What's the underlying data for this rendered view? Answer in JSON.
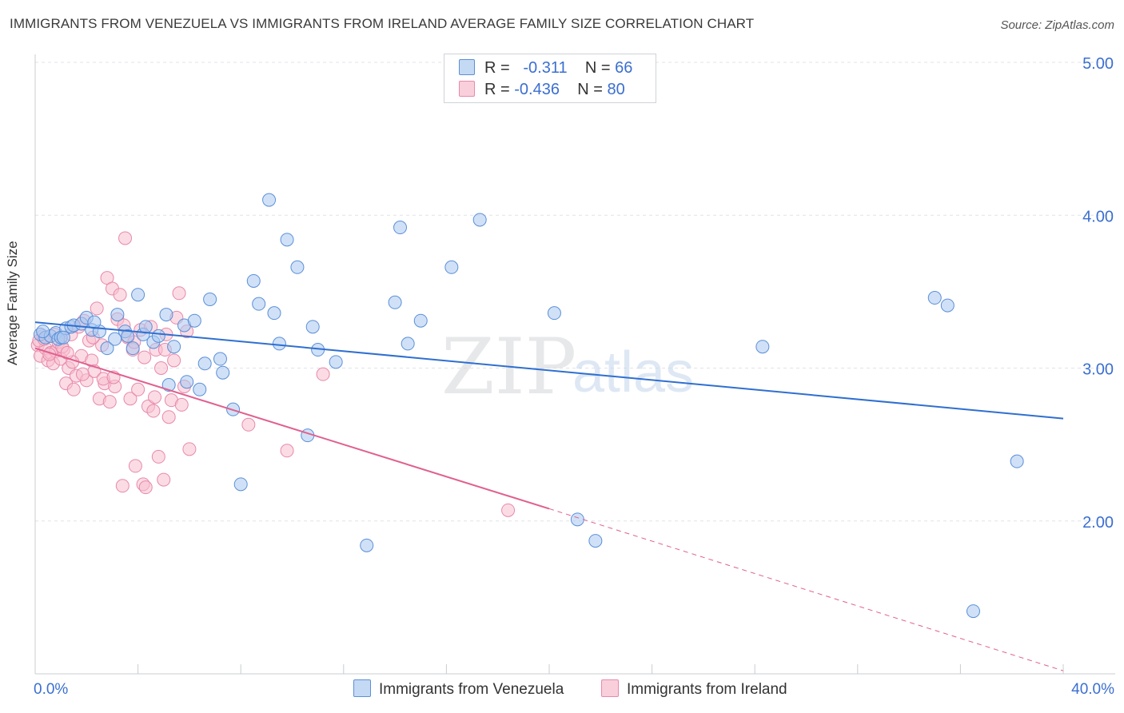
{
  "title": "IMMIGRANTS FROM VENEZUELA VS IMMIGRANTS FROM IRELAND AVERAGE FAMILY SIZE CORRELATION CHART",
  "source": "Source: ZipAtlas.com",
  "watermark": {
    "zip": "ZIP",
    "atlas": "atlas"
  },
  "legend": {
    "venezuela": {
      "r_label": "R =",
      "r_value": "-0.311",
      "n_label": "N =",
      "n_value": "66"
    },
    "ireland": {
      "r_label": "R =",
      "r_value": "-0.436",
      "n_label": "N =",
      "n_value": "80"
    }
  },
  "bottom_legend": {
    "venezuela": "Immigrants from Venezuela",
    "ireland": "Immigrants from Ireland"
  },
  "x_axis": {
    "min_label": "0.0%",
    "max_label": "40.0%"
  },
  "y_axis_label": "Average Family Size",
  "colors": {
    "venezuela_fill": "#aac8f0",
    "venezuela_stroke": "#5b8fd8",
    "venezuela_line": "#2f6fd0",
    "ireland_fill": "#f7bfd0",
    "ireland_stroke": "#e889aa",
    "ireland_line": "#e0608f",
    "tick_text": "#3b6fd0",
    "grid": "#dfe3e8"
  },
  "chart_data": {
    "type": "scatter",
    "xlabel": "",
    "ylabel": "Average Family Size",
    "xlim": [
      0,
      40
    ],
    "ylim": [
      1.0,
      5.0
    ],
    "y_ticks": [
      2.0,
      3.0,
      4.0,
      5.0
    ],
    "y_tick_labels": [
      "2.00",
      "3.00",
      "4.00",
      "5.00"
    ],
    "x_tick_labels": [
      "0.0%",
      "40.0%"
    ],
    "grid": true,
    "legend_position": "top-center",
    "series": [
      {
        "name": "Immigrants from Venezuela",
        "R": -0.311,
        "N": 66,
        "trend": {
          "x": [
            0,
            40
          ],
          "y": [
            3.3,
            2.67
          ]
        },
        "points": [
          [
            0.2,
            3.22
          ],
          [
            0.4,
            3.2
          ],
          [
            0.6,
            3.21
          ],
          [
            0.8,
            3.23
          ],
          [
            0.9,
            3.19
          ],
          [
            1.0,
            3.2
          ],
          [
            1.2,
            3.26
          ],
          [
            1.4,
            3.27
          ],
          [
            1.5,
            3.28
          ],
          [
            1.8,
            3.29
          ],
          [
            2.0,
            3.33
          ],
          [
            2.2,
            3.25
          ],
          [
            2.5,
            3.24
          ],
          [
            2.8,
            3.13
          ],
          [
            3.1,
            3.19
          ],
          [
            3.2,
            3.35
          ],
          [
            3.5,
            3.24
          ],
          [
            3.6,
            3.21
          ],
          [
            3.8,
            3.13
          ],
          [
            4.0,
            3.48
          ],
          [
            4.2,
            3.22
          ],
          [
            4.3,
            3.27
          ],
          [
            4.6,
            3.17
          ],
          [
            4.8,
            3.21
          ],
          [
            5.1,
            3.35
          ],
          [
            5.2,
            2.89
          ],
          [
            5.4,
            3.14
          ],
          [
            5.8,
            3.28
          ],
          [
            5.9,
            2.91
          ],
          [
            6.2,
            3.31
          ],
          [
            6.4,
            2.86
          ],
          [
            6.6,
            3.03
          ],
          [
            6.8,
            3.45
          ],
          [
            7.2,
            3.06
          ],
          [
            7.3,
            2.97
          ],
          [
            7.7,
            2.73
          ],
          [
            8.0,
            2.24
          ],
          [
            8.5,
            3.57
          ],
          [
            8.7,
            3.42
          ],
          [
            9.1,
            4.1
          ],
          [
            9.3,
            3.36
          ],
          [
            9.5,
            3.16
          ],
          [
            9.8,
            3.84
          ],
          [
            10.2,
            3.66
          ],
          [
            10.6,
            2.56
          ],
          [
            10.8,
            3.27
          ],
          [
            11.0,
            3.12
          ],
          [
            11.7,
            3.04
          ],
          [
            12.9,
            1.84
          ],
          [
            14.0,
            3.43
          ],
          [
            14.2,
            3.92
          ],
          [
            14.5,
            3.16
          ],
          [
            15.0,
            3.31
          ],
          [
            16.2,
            3.66
          ],
          [
            17.3,
            3.97
          ],
          [
            20.2,
            3.36
          ],
          [
            21.1,
            2.01
          ],
          [
            21.8,
            1.87
          ],
          [
            28.3,
            3.14
          ],
          [
            35.0,
            3.46
          ],
          [
            35.5,
            3.41
          ],
          [
            36.5,
            1.41
          ],
          [
            38.2,
            2.39
          ],
          [
            0.3,
            3.24
          ],
          [
            1.1,
            3.2
          ],
          [
            2.3,
            3.3
          ]
        ]
      },
      {
        "name": "Immigrants from Ireland",
        "R": -0.436,
        "N": 80,
        "trend": {
          "x": [
            0,
            20
          ],
          "y": [
            3.13,
            2.08
          ]
        },
        "trend_dashed": {
          "x": [
            20,
            40
          ],
          "y": [
            2.08,
            1.02
          ]
        },
        "points": [
          [
            0.1,
            3.15
          ],
          [
            0.2,
            3.08
          ],
          [
            0.3,
            3.21
          ],
          [
            0.4,
            3.13
          ],
          [
            0.5,
            3.05
          ],
          [
            0.6,
            3.1
          ],
          [
            0.7,
            3.03
          ],
          [
            0.8,
            3.11
          ],
          [
            0.9,
            3.17
          ],
          [
            1.0,
            3.06
          ],
          [
            1.1,
            3.12
          ],
          [
            1.2,
            2.9
          ],
          [
            1.3,
            3.0
          ],
          [
            1.4,
            3.22
          ],
          [
            1.5,
            2.86
          ],
          [
            1.6,
            2.95
          ],
          [
            1.7,
            3.27
          ],
          [
            1.8,
            3.08
          ],
          [
            1.9,
            3.31
          ],
          [
            2.0,
            2.92
          ],
          [
            2.1,
            3.18
          ],
          [
            2.2,
            3.05
          ],
          [
            2.3,
            2.98
          ],
          [
            2.4,
            3.39
          ],
          [
            2.5,
            2.8
          ],
          [
            2.6,
            3.15
          ],
          [
            2.7,
            2.9
          ],
          [
            2.8,
            3.59
          ],
          [
            2.9,
            2.78
          ],
          [
            3.0,
            3.52
          ],
          [
            3.1,
            2.88
          ],
          [
            3.2,
            3.32
          ],
          [
            3.3,
            3.48
          ],
          [
            3.4,
            2.23
          ],
          [
            3.5,
            3.85
          ],
          [
            3.6,
            3.2
          ],
          [
            3.7,
            2.8
          ],
          [
            3.8,
            3.12
          ],
          [
            3.9,
            2.36
          ],
          [
            4.0,
            2.86
          ],
          [
            4.1,
            3.25
          ],
          [
            4.2,
            2.24
          ],
          [
            4.3,
            2.22
          ],
          [
            4.4,
            2.75
          ],
          [
            4.5,
            3.27
          ],
          [
            4.6,
            2.72
          ],
          [
            4.7,
            3.12
          ],
          [
            4.8,
            2.42
          ],
          [
            4.9,
            3.0
          ],
          [
            5.0,
            2.27
          ],
          [
            5.1,
            3.22
          ],
          [
            5.2,
            2.68
          ],
          [
            5.3,
            2.79
          ],
          [
            5.4,
            3.05
          ],
          [
            5.5,
            3.33
          ],
          [
            5.6,
            3.49
          ],
          [
            5.7,
            2.76
          ],
          [
            5.8,
            2.88
          ],
          [
            5.9,
            3.24
          ],
          [
            6.0,
            2.47
          ],
          [
            0.15,
            3.18
          ],
          [
            0.55,
            3.09
          ],
          [
            1.05,
            3.14
          ],
          [
            1.45,
            3.04
          ],
          [
            1.85,
            2.96
          ],
          [
            2.25,
            3.2
          ],
          [
            2.65,
            2.93
          ],
          [
            3.05,
            2.94
          ],
          [
            3.45,
            3.28
          ],
          [
            3.85,
            3.17
          ],
          [
            4.25,
            3.07
          ],
          [
            4.65,
            2.81
          ],
          [
            5.05,
            3.12
          ],
          [
            8.3,
            2.63
          ],
          [
            9.8,
            2.46
          ],
          [
            11.2,
            2.96
          ],
          [
            18.4,
            2.07
          ],
          [
            0.35,
            3.19
          ],
          [
            0.75,
            3.22
          ],
          [
            1.25,
            3.1
          ]
        ]
      }
    ]
  }
}
